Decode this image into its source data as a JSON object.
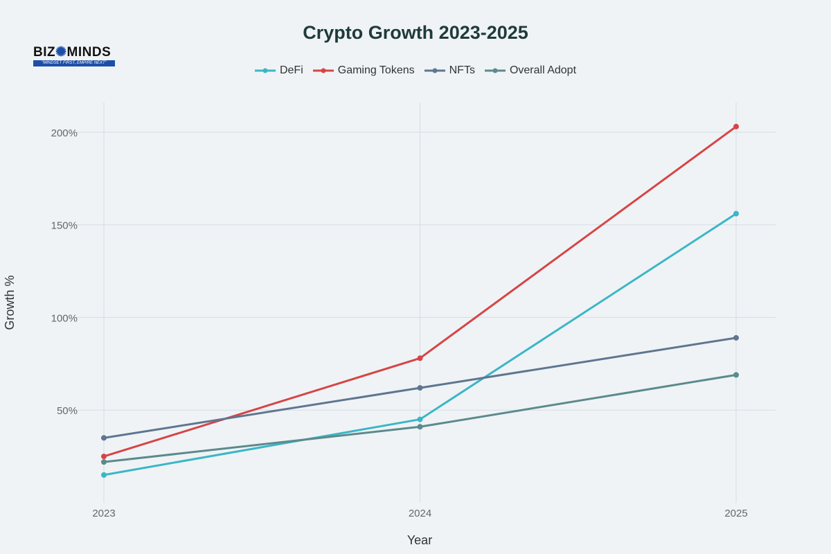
{
  "logo": {
    "text": "BIZ MINDS",
    "tagline": "\"MINDSET FIRST, EMPIRE NEXT\""
  },
  "chart_data": {
    "type": "line",
    "title": "Crypto Growth 2023-2025",
    "xlabel": "Year",
    "ylabel": "Growth %",
    "x": [
      "2023",
      "2024",
      "2025"
    ],
    "ylim": [
      0,
      216
    ],
    "yticks": [
      50,
      100,
      150,
      200
    ],
    "ytick_labels": [
      "50%",
      "100%",
      "150%",
      "200%"
    ],
    "grid": true,
    "legend_position": "top-center",
    "series": [
      {
        "name": "DeFi",
        "color": "#3bb6c6",
        "values": [
          15,
          45,
          156
        ]
      },
      {
        "name": "Gaming Tokens",
        "color": "#d64545",
        "values": [
          25,
          78,
          203
        ]
      },
      {
        "name": "NFTs",
        "color": "#5f7590",
        "values": [
          35,
          62,
          89
        ]
      },
      {
        "name": "Overall Adopt",
        "color": "#5c8a8b",
        "values": [
          22,
          41,
          69
        ]
      }
    ]
  }
}
